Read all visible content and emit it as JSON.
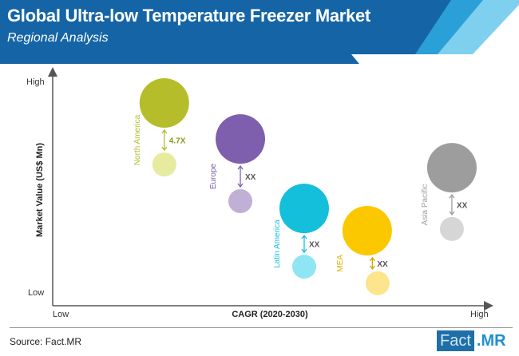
{
  "header": {
    "title": "Global Ultra-low Temperature Freezer Market",
    "subtitle": "Regional Analysis"
  },
  "footer": {
    "source": "Source: Fact.MR",
    "logo_left": "Fact",
    "logo_right": ".MR"
  },
  "colors": {
    "banner": "#1565a6",
    "stripe1": "#2b9fd8",
    "stripe2": "#7fd0ef"
  },
  "chart_data": {
    "type": "scatter",
    "title": "",
    "xlabel": "CAGR (2020-2030)",
    "ylabel": "Market Value (US$ Mn)",
    "x_ticks": {
      "low": "Low",
      "high": "High"
    },
    "y_ticks": {
      "low": "Low",
      "high": "High"
    },
    "xlim": [
      0,
      100
    ],
    "ylim": [
      0,
      100
    ],
    "series": [
      {
        "name": "North America",
        "color": "#b5bd2a",
        "light": "#e6eb9f",
        "x": 25.7,
        "y_large": 86.7,
        "x_small": 25.7,
        "y_small": 60.4,
        "growth": "4.7X"
      },
      {
        "name": "Europe",
        "color": "#7d5fad",
        "light": "#c0b0d6",
        "x": 43.2,
        "y_large": 71.3,
        "x_small": 43.2,
        "y_small": 44.7,
        "growth": "XX"
      },
      {
        "name": "Latin America",
        "color": "#14bfdc",
        "light": "#8ee6f5",
        "x": 57.9,
        "y_large": 41.6,
        "x_small": 57.9,
        "y_small": 16.7,
        "growth": "XX"
      },
      {
        "name": "MEA",
        "color": "#fbc800",
        "light": "#fde58e",
        "x": 72.4,
        "y_large": 32.1,
        "x_small": 74.8,
        "y_small": 9.6,
        "growth": "XX"
      },
      {
        "name": "Asia Pacific",
        "color": "#9d9d9d",
        "light": "#d6d6d6",
        "x": 91.9,
        "y_large": 59.0,
        "x_small": 91.9,
        "y_small": 32.8,
        "growth": "XX"
      }
    ]
  }
}
